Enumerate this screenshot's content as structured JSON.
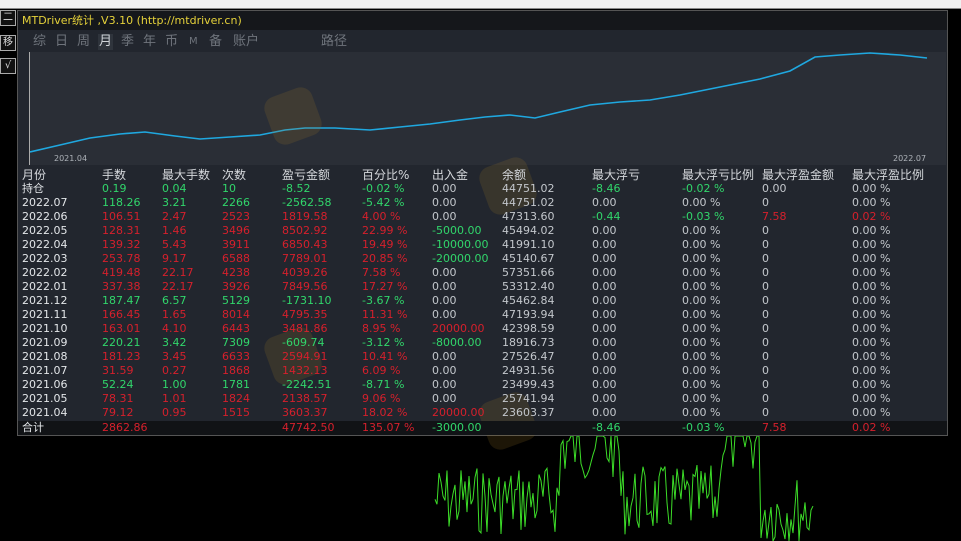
{
  "window": {
    "title": "MTDriver统计 ,V3.10 (http://mtdriver.cn)"
  },
  "side_buttons": [
    "二",
    "移",
    "√"
  ],
  "tabs": [
    {
      "label": "综",
      "active": false
    },
    {
      "label": "日",
      "active": false
    },
    {
      "label": "周",
      "active": false
    },
    {
      "label": "月",
      "active": true
    },
    {
      "label": "季",
      "active": false
    },
    {
      "label": "年",
      "active": false
    },
    {
      "label": "币",
      "active": false
    },
    {
      "label": "M",
      "active": false
    },
    {
      "label": "备",
      "active": false
    },
    {
      "label": "账户",
      "active": false
    },
    {
      "label": "路径",
      "active": false
    }
  ],
  "equity_chart": {
    "start_label": "2021.04",
    "end_label": "2022.07",
    "line_color": "#1fa8e0"
  },
  "colors": {
    "profit": "#d5202c",
    "loss": "#31d66b",
    "neutral": "#c3c7cc",
    "title": "#e6d23a",
    "price_line": "#3cdc28"
  },
  "table": {
    "headers": [
      "月份",
      "手数",
      "最大手数",
      "次数",
      "盈亏金额",
      "百分比%",
      "出入金",
      "余额",
      "最大浮亏",
      "最大浮亏比例",
      "最大浮盈金额",
      "最大浮盈比例"
    ],
    "rows": [
      [
        "持仓",
        "0.19",
        "0.04",
        "10",
        "-8.52",
        "-0.02 %",
        "0.00",
        "44751.02",
        "-8.46",
        "-0.02 %",
        "0.00",
        "0.00 %"
      ],
      [
        "2022.07",
        "118.26",
        "3.21",
        "2266",
        "-2562.58",
        "-5.42 %",
        "0.00",
        "44751.02",
        "0.00",
        "0.00 %",
        "0",
        "0.00 %"
      ],
      [
        "2022.06",
        "106.51",
        "2.47",
        "2523",
        "1819.58",
        "4.00 %",
        "0.00",
        "47313.60",
        "-0.44",
        "-0.03 %",
        "7.58",
        "0.02 %"
      ],
      [
        "2022.05",
        "128.31",
        "1.46",
        "3496",
        "8502.92",
        "22.99 %",
        "-5000.00",
        "45494.02",
        "0.00",
        "0.00 %",
        "0",
        "0.00 %"
      ],
      [
        "2022.04",
        "139.32",
        "5.43",
        "3911",
        "6850.43",
        "19.49 %",
        "-10000.00",
        "41991.10",
        "0.00",
        "0.00 %",
        "0",
        "0.00 %"
      ],
      [
        "2022.03",
        "253.78",
        "9.17",
        "6588",
        "7789.01",
        "20.85 %",
        "-20000.00",
        "45140.67",
        "0.00",
        "0.00 %",
        "0",
        "0.00 %"
      ],
      [
        "2022.02",
        "419.48",
        "22.17",
        "4238",
        "4039.26",
        "7.58 %",
        "0.00",
        "57351.66",
        "0.00",
        "0.00 %",
        "0",
        "0.00 %"
      ],
      [
        "2022.01",
        "337.38",
        "22.17",
        "3926",
        "7849.56",
        "17.27 %",
        "0.00",
        "53312.40",
        "0.00",
        "0.00 %",
        "0",
        "0.00 %"
      ],
      [
        "2021.12",
        "187.47",
        "6.57",
        "5129",
        "-1731.10",
        "-3.67 %",
        "0.00",
        "45462.84",
        "0.00",
        "0.00 %",
        "0",
        "0.00 %"
      ],
      [
        "2021.11",
        "166.45",
        "1.65",
        "8014",
        "4795.35",
        "11.31 %",
        "0.00",
        "47193.94",
        "0.00",
        "0.00 %",
        "0",
        "0.00 %"
      ],
      [
        "2021.10",
        "163.01",
        "4.10",
        "6443",
        "3481.86",
        "8.95 %",
        "20000.00",
        "42398.59",
        "0.00",
        "0.00 %",
        "0",
        "0.00 %"
      ],
      [
        "2021.09",
        "220.21",
        "3.42",
        "7309",
        "-609.74",
        "-3.12 %",
        "-8000.00",
        "18916.73",
        "0.00",
        "0.00 %",
        "0",
        "0.00 %"
      ],
      [
        "2021.08",
        "181.23",
        "3.45",
        "6633",
        "2594.91",
        "10.41 %",
        "0.00",
        "27526.47",
        "0.00",
        "0.00 %",
        "0",
        "0.00 %"
      ],
      [
        "2021.07",
        "31.59",
        "0.27",
        "1868",
        "1432.13",
        "6.09 %",
        "0.00",
        "24931.56",
        "0.00",
        "0.00 %",
        "0",
        "0.00 %"
      ],
      [
        "2021.06",
        "52.24",
        "1.00",
        "1781",
        "-2242.51",
        "-8.71 %",
        "0.00",
        "23499.43",
        "0.00",
        "0.00 %",
        "0",
        "0.00 %"
      ],
      [
        "2021.05",
        "78.31",
        "1.01",
        "1824",
        "2138.57",
        "9.06 %",
        "0.00",
        "25741.94",
        "0.00",
        "0.00 %",
        "0",
        "0.00 %"
      ],
      [
        "2021.04",
        "79.12",
        "0.95",
        "1515",
        "3603.37",
        "18.02 %",
        "20000.00",
        "23603.37",
        "0.00",
        "0.00 %",
        "0",
        "0.00 %"
      ]
    ],
    "total": [
      "合计",
      "2862.86",
      "",
      "",
      "47742.50",
      "135.07 %",
      "-3000.00",
      "",
      "-8.46",
      "-0.03 %",
      "7.58",
      "0.02 %"
    ]
  }
}
